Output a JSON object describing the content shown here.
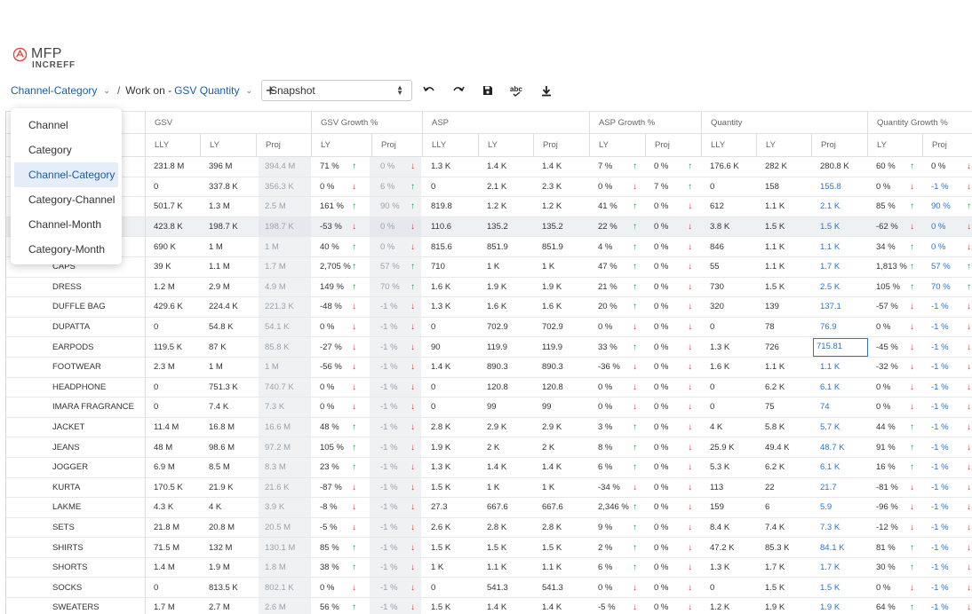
{
  "app": {
    "name": "MFP",
    "subtitle": "INCREFF"
  },
  "breadcrumb": {
    "level": "Channel-Category",
    "separator": "/",
    "workon_label": "Work on -",
    "metric": "GSV Quantity"
  },
  "snapshot": {
    "value": "Snapshot"
  },
  "icons": [
    "undo-icon",
    "redo-icon",
    "save-icon",
    "spell-check-icon",
    "download-icon"
  ],
  "level_menu": {
    "items": [
      "Channel",
      "Category",
      "Channel-Category",
      "Category-Channel",
      "Channel-Month",
      "Category-Month"
    ],
    "selected": "Channel-Category"
  },
  "grid": {
    "groups": [
      "GSV",
      "GSV Growth %",
      "ASP",
      "ASP Growth %",
      "Quantity",
      "Quantity Growth %"
    ],
    "subheaders": [
      "LLY",
      "LY",
      "Proj",
      "LY",
      "Proj",
      "LLY",
      "LY",
      "Proj",
      "LY",
      "Proj",
      "LLY",
      "LY",
      "Proj",
      "LY",
      "Proj"
    ],
    "rows": [
      {
        "name": "",
        "v": [
          "231.8 M",
          "396 M",
          "394.4 M",
          "71 %",
          "0 %",
          "1.3 K",
          "1.4 K",
          "1.4 K",
          "7 %",
          "0 %",
          "176.6 K",
          "282 K",
          "280.8 K",
          "60 %",
          "0 %"
        ],
        "a": [
          "up",
          "dn",
          "up",
          "up",
          "up",
          "dn"
        ]
      },
      {
        "name": "",
        "v": [
          "0",
          "337.8 K",
          "356.3 K",
          "0 %",
          "6 %",
          "0",
          "2.1 K",
          "2.3 K",
          "0 %",
          "7 %",
          "0",
          "158",
          "155.8",
          "0 %",
          "-1 %"
        ],
        "a": [
          "dn",
          "up",
          "dn",
          "up",
          "dn",
          "dn"
        ]
      },
      {
        "name": "",
        "v": [
          "501.7 K",
          "1.3 M",
          "2.5 M",
          "161 %",
          "90 %",
          "819.8",
          "1.2 K",
          "1.2 K",
          "41 %",
          "0 %",
          "612",
          "1.1 K",
          "2.1 K",
          "85 %",
          "90 %"
        ],
        "a": [
          "up",
          "up",
          "up",
          "dn",
          "up",
          "up"
        ]
      },
      {
        "name": "",
        "v": [
          "423.8 K",
          "198.7 K",
          "198.7 K",
          "-53 %",
          "0 %",
          "110.6",
          "135.2",
          "135.2",
          "22 %",
          "0 %",
          "3.8 K",
          "1.5 K",
          "1.5 K",
          "-62 %",
          "0 %"
        ],
        "a": [
          "dn",
          "dn",
          "up",
          "dn",
          "dn",
          "dn"
        ]
      },
      {
        "name": "",
        "v": [
          "690 K",
          "1 M",
          "1 M",
          "40 %",
          "0 %",
          "815.6",
          "851.9",
          "851.9",
          "4 %",
          "0 %",
          "846",
          "1.1 K",
          "1.1 K",
          "34 %",
          "0 %"
        ],
        "a": [
          "up",
          "dn",
          "up",
          "dn",
          "up",
          "dn"
        ]
      },
      {
        "name": "CAPS",
        "v": [
          "39 K",
          "1.1 M",
          "1.7 M",
          "2,705 %",
          "57 %",
          "710",
          "1 K",
          "1 K",
          "47 %",
          "0 %",
          "55",
          "1.1 K",
          "1.7 K",
          "1,813 %",
          "57 %"
        ],
        "a": [
          "up",
          "up",
          "up",
          "dn",
          "up",
          "up"
        ]
      },
      {
        "name": "DRESS",
        "v": [
          "1.2 M",
          "2.9 M",
          "4.9 M",
          "149 %",
          "70 %",
          "1.6 K",
          "1.9 K",
          "1.9 K",
          "21 %",
          "0 %",
          "730",
          "1.5 K",
          "2.5 K",
          "105 %",
          "70 %"
        ],
        "a": [
          "up",
          "up",
          "up",
          "dn",
          "up",
          "up"
        ]
      },
      {
        "name": "DUFFLE BAG",
        "v": [
          "429.6 K",
          "224.4 K",
          "221.3 K",
          "-48 %",
          "-1 %",
          "1.3 K",
          "1.6 K",
          "1.6 K",
          "20 %",
          "0 %",
          "320",
          "139",
          "137.1",
          "-57 %",
          "-1 %"
        ],
        "a": [
          "dn",
          "dn",
          "up",
          "dn",
          "dn",
          "dn"
        ]
      },
      {
        "name": "DUPATTA",
        "v": [
          "0",
          "54.8 K",
          "54.1 K",
          "0 %",
          "-1 %",
          "0",
          "702.9",
          "702.9",
          "0 %",
          "0 %",
          "0",
          "78",
          "76.9",
          "0 %",
          "-1 %"
        ],
        "a": [
          "dn",
          "dn",
          "dn",
          "dn",
          "dn",
          "dn"
        ]
      },
      {
        "name": "EARPODS",
        "v": [
          "119.5 K",
          "87 K",
          "85.8 K",
          "-27 %",
          "-1 %",
          "90",
          "119.9",
          "119.9",
          "33 %",
          "0 %",
          "1.3 K",
          "726",
          "715.81",
          "-45 %",
          "-1 %"
        ],
        "a": [
          "dn",
          "dn",
          "up",
          "dn",
          "dn",
          "dn"
        ],
        "editing": true
      },
      {
        "name": "FOOTWEAR",
        "v": [
          "2.3 M",
          "1 M",
          "1 M",
          "-56 %",
          "-1 %",
          "1.4 K",
          "890.3",
          "890.3",
          "-36 %",
          "0 %",
          "1.6 K",
          "1.1 K",
          "1.1 K",
          "-32 %",
          "-1 %"
        ],
        "a": [
          "dn",
          "dn",
          "dn",
          "dn",
          "dn",
          "dn"
        ]
      },
      {
        "name": "HEADPHONE",
        "v": [
          "0",
          "751.3 K",
          "740.7 K",
          "0 %",
          "-1 %",
          "0",
          "120.8",
          "120.8",
          "0 %",
          "0 %",
          "0",
          "6.2 K",
          "6.1 K",
          "0 %",
          "-1 %"
        ],
        "a": [
          "dn",
          "dn",
          "dn",
          "dn",
          "dn",
          "dn"
        ]
      },
      {
        "name": "IMARA FRAGRANCE",
        "v": [
          "0",
          "7.4 K",
          "7.3 K",
          "0 %",
          "-1 %",
          "0",
          "99",
          "99",
          "0 %",
          "0 %",
          "0",
          "75",
          "74",
          "0 %",
          "-1 %"
        ],
        "a": [
          "dn",
          "dn",
          "dn",
          "dn",
          "dn",
          "dn"
        ]
      },
      {
        "name": "JACKET",
        "v": [
          "11.4 M",
          "16.8 M",
          "16.6 M",
          "48 %",
          "-1 %",
          "2.8 K",
          "2.9 K",
          "2.9 K",
          "3 %",
          "0 %",
          "4 K",
          "5.8 K",
          "5.7 K",
          "44 %",
          "-1 %"
        ],
        "a": [
          "up",
          "dn",
          "up",
          "dn",
          "up",
          "dn"
        ]
      },
      {
        "name": "JEANS",
        "v": [
          "48 M",
          "98.6 M",
          "97.2 M",
          "105 %",
          "-1 %",
          "1.9 K",
          "2 K",
          "2 K",
          "8 %",
          "0 %",
          "25.9 K",
          "49.4 K",
          "48.7 K",
          "91 %",
          "-1 %"
        ],
        "a": [
          "up",
          "dn",
          "up",
          "dn",
          "up",
          "dn"
        ]
      },
      {
        "name": "JOGGER",
        "v": [
          "6.9 M",
          "8.5 M",
          "8.3 M",
          "23 %",
          "-1 %",
          "1.3 K",
          "1.4 K",
          "1.4 K",
          "6 %",
          "0 %",
          "5.3 K",
          "6.2 K",
          "6.1 K",
          "16 %",
          "-1 %"
        ],
        "a": [
          "up",
          "dn",
          "up",
          "dn",
          "up",
          "dn"
        ]
      },
      {
        "name": "KURTA",
        "v": [
          "170.5 K",
          "21.9 K",
          "21.6 K",
          "-87 %",
          "-1 %",
          "1.5 K",
          "1 K",
          "1 K",
          "-34 %",
          "0 %",
          "113",
          "22",
          "21.7",
          "-81 %",
          "-1 %"
        ],
        "a": [
          "dn",
          "dn",
          "dn",
          "dn",
          "dn",
          "dn"
        ]
      },
      {
        "name": "LAKME",
        "v": [
          "4.3 K",
          "4 K",
          "3.9 K",
          "-8 %",
          "-1 %",
          "27.3",
          "667.6",
          "667.6",
          "2,346 %",
          "0 %",
          "159",
          "6",
          "5.9",
          "-96 %",
          "-1 %"
        ],
        "a": [
          "dn",
          "dn",
          "up",
          "dn",
          "dn",
          "dn"
        ]
      },
      {
        "name": "SETS",
        "v": [
          "21.8 M",
          "20.8 M",
          "20.5 M",
          "-5 %",
          "-1 %",
          "2.6 K",
          "2.8 K",
          "2.8 K",
          "9 %",
          "0 %",
          "8.4 K",
          "7.4 K",
          "7.3 K",
          "-12 %",
          "-1 %"
        ],
        "a": [
          "dn",
          "dn",
          "up",
          "dn",
          "dn",
          "dn"
        ]
      },
      {
        "name": "SHIRTS",
        "v": [
          "71.5 M",
          "132 M",
          "130.1 M",
          "85 %",
          "-1 %",
          "1.5 K",
          "1.5 K",
          "1.5 K",
          "2 %",
          "0 %",
          "47.2 K",
          "85.3 K",
          "84.1 K",
          "81 %",
          "-1 %"
        ],
        "a": [
          "up",
          "dn",
          "up",
          "dn",
          "up",
          "dn"
        ]
      },
      {
        "name": "SHORTS",
        "v": [
          "1.4 M",
          "1.9 M",
          "1.8 M",
          "38 %",
          "-1 %",
          "1 K",
          "1.1 K",
          "1.1 K",
          "6 %",
          "0 %",
          "1.3 K",
          "1.7 K",
          "1.7 K",
          "30 %",
          "-1 %"
        ],
        "a": [
          "up",
          "dn",
          "up",
          "dn",
          "up",
          "dn"
        ]
      },
      {
        "name": "SOCKS",
        "v": [
          "0",
          "813.5 K",
          "802.1 K",
          "0 %",
          "-1 %",
          "0",
          "541.3",
          "541.3",
          "0 %",
          "0 %",
          "0",
          "1.5 K",
          "1.5 K",
          "0 %",
          "-1 %"
        ],
        "a": [
          "dn",
          "dn",
          "dn",
          "dn",
          "dn",
          "dn"
        ]
      },
      {
        "name": "SWEATERS",
        "v": [
          "1.7 M",
          "2.7 M",
          "2.6 M",
          "56 %",
          "-1 %",
          "1.5 K",
          "1.4 K",
          "1.4 K",
          "-5 %",
          "0 %",
          "1.2 K",
          "1.9 K",
          "1.9 K",
          "64 %",
          "-1 %"
        ],
        "a": [
          "up",
          "dn",
          "dn",
          "dn",
          "up",
          "dn"
        ]
      }
    ]
  },
  "colors": {
    "accent": "#1a5da8",
    "up": "#1c9a4a",
    "down": "#d83b3b",
    "proj_text": "#2c74c9",
    "logo": "#e0443c"
  }
}
